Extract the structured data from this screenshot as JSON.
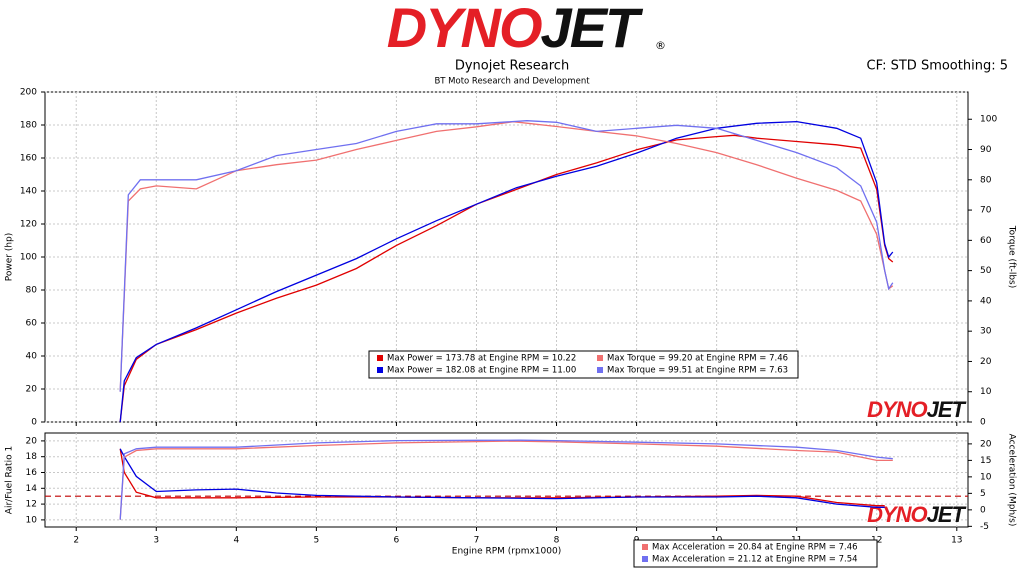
{
  "header": {
    "logo": [
      "DYNO",
      "JET",
      "®"
    ],
    "title": "Dynojet Research",
    "subtitle": "BT Moto Research and Development",
    "settings": "CF: STD Smoothing: 5"
  },
  "chart_data": [
    {
      "type": "line",
      "ylabel": "Power (hp)",
      "y2label": "Torque (ft-lbs)",
      "xlim": [
        1.61,
        13.14
      ],
      "ylim": [
        0,
        200
      ],
      "yticks": [
        0,
        20,
        40,
        60,
        80,
        100,
        120,
        140,
        160,
        180,
        200
      ],
      "y2lim": [
        0,
        109
      ],
      "y2ticks": [
        0,
        10,
        20,
        30,
        40,
        50,
        60,
        70,
        80,
        90,
        100
      ],
      "grid": true,
      "watermark": [
        "DYNO",
        "JET"
      ],
      "series": [
        {
          "name": "Max Power = 173.78 at Engine RPM = 10.22",
          "color": "#e00000",
          "axis": "y",
          "x": [
            2.55,
            2.6,
            2.75,
            3,
            3.5,
            4,
            4.5,
            5,
            5.5,
            6,
            6.5,
            7,
            7.5,
            8,
            8.5,
            9,
            9.5,
            10,
            10.22,
            10.5,
            11,
            11.5,
            11.8,
            12,
            12.1,
            12.15,
            12.2
          ],
          "values": [
            0,
            22,
            38,
            47,
            56,
            66,
            75,
            83,
            93,
            107,
            119,
            132,
            141,
            150,
            157,
            165,
            171,
            173,
            173.78,
            172,
            170,
            168,
            166,
            141,
            107,
            99,
            97
          ]
        },
        {
          "name": "Max Power = 182.08 at Engine RPM = 11.00",
          "color": "#0000e0",
          "axis": "y",
          "x": [
            2.55,
            2.6,
            2.75,
            3,
            3.5,
            4,
            4.5,
            5,
            5.5,
            6,
            6.5,
            7,
            7.5,
            8,
            8.5,
            9,
            9.5,
            10,
            10.5,
            11,
            11.5,
            11.8,
            12,
            12.1,
            12.15,
            12.2
          ],
          "values": [
            0,
            25,
            39,
            47,
            57,
            68,
            79,
            89,
            99,
            111,
            122,
            132,
            142,
            149,
            155,
            163,
            172,
            178,
            181,
            182.08,
            178,
            172,
            145,
            108,
            100,
            103
          ]
        },
        {
          "name": "Max Torque = 99.20 at Engine RPM = 7.46",
          "color": "#f07070",
          "axis": "y2",
          "x": [
            2.55,
            2.65,
            2.8,
            3,
            3.5,
            4,
            4.5,
            5,
            5.5,
            6,
            6.5,
            7,
            7.46,
            8,
            8.5,
            9,
            9.5,
            10,
            10.5,
            11,
            11.5,
            11.8,
            12,
            12.1,
            12.15,
            12.2
          ],
          "values": [
            10,
            73,
            77,
            78,
            77,
            83,
            85,
            86.5,
            90,
            93,
            96,
            97.5,
            99.2,
            97.6,
            96,
            94.5,
            92,
            89,
            85,
            80.5,
            76.5,
            73,
            62,
            50,
            44,
            45
          ]
        },
        {
          "name": "Max Torque = 99.51 at Engine RPM = 7.63",
          "color": "#7070f0",
          "axis": "y2",
          "x": [
            2.55,
            2.65,
            2.8,
            3,
            3.5,
            4,
            4.5,
            5,
            5.5,
            6,
            6.5,
            7,
            7.63,
            8,
            8.5,
            9,
            9.5,
            10,
            10.5,
            11,
            11.5,
            11.8,
            12,
            12.1,
            12.15,
            12.2
          ],
          "values": [
            10,
            75,
            80,
            80,
            80,
            83,
            88,
            90,
            92,
            96,
            98.5,
            98.5,
            99.51,
            99,
            96,
            97,
            98,
            97,
            93,
            89,
            84,
            78,
            66,
            50,
            44,
            46
          ]
        }
      ]
    },
    {
      "type": "line",
      "xlabel": "Engine RPM (rpmx1000)",
      "ylabel": "Air/Fuel Ratio 1",
      "y2label": "Acceleration (Mph/s)",
      "xlim": [
        1.61,
        13.14
      ],
      "xticks": [
        2,
        3,
        4,
        5,
        6,
        7,
        8,
        9,
        10,
        11,
        12,
        13
      ],
      "ylim": [
        9.1,
        21
      ],
      "yticks": [
        10,
        12,
        14,
        16,
        18,
        20
      ],
      "y2lim": [
        -5.2,
        23.3
      ],
      "y2ticks": [
        -5,
        0,
        5,
        10,
        15,
        20
      ],
      "grid": true,
      "ref_line": 13,
      "ref_color": "#c00000",
      "watermark": [
        "DYNO",
        "JET"
      ],
      "series": [
        {
          "color": "#e00000",
          "axis": "y",
          "x": [
            2.55,
            2.6,
            2.75,
            3,
            4,
            5,
            6,
            7,
            8,
            9,
            10,
            10.5,
            11,
            11.5,
            12,
            12.1
          ],
          "values": [
            19,
            16,
            13.5,
            12.8,
            12.8,
            12.9,
            12.9,
            12.8,
            12.8,
            12.9,
            13,
            13.1,
            13,
            12.2,
            11.8,
            11.8
          ]
        },
        {
          "color": "#0000e0",
          "axis": "y",
          "x": [
            2.55,
            2.6,
            2.75,
            3,
            3.5,
            4,
            4.5,
            5,
            6,
            7,
            8,
            9,
            10,
            10.5,
            11,
            11.5,
            12,
            12.1
          ],
          "values": [
            19,
            18,
            15.5,
            13.6,
            13.8,
            13.9,
            13.4,
            13.1,
            12.9,
            12.8,
            12.7,
            12.9,
            12.9,
            13,
            12.8,
            12,
            11.6,
            11.6
          ]
        },
        {
          "name": "Max Acceleration = 20.84 at Engine RPM = 7.46",
          "color": "#f07070",
          "axis": "y2",
          "x": [
            2.55,
            2.6,
            2.75,
            3,
            4,
            5,
            6,
            7,
            7.46,
            8,
            9,
            10,
            11,
            11.5,
            12,
            12.2
          ],
          "values": [
            -3,
            16,
            18,
            18.5,
            18.5,
            19.5,
            20.3,
            20.7,
            20.84,
            20.6,
            20,
            19.3,
            18,
            17.5,
            15,
            15
          ]
        },
        {
          "name": "Max Acceleration = 21.12 at Engine RPM = 7.54",
          "color": "#7070f0",
          "axis": "y2",
          "x": [
            2.55,
            2.6,
            2.75,
            3,
            4,
            5,
            6,
            7,
            7.54,
            8,
            9,
            10,
            11,
            11.5,
            12,
            12.2
          ],
          "values": [
            -3,
            17,
            18.5,
            19,
            19,
            20.3,
            21,
            21.1,
            21.12,
            21,
            20.5,
            20,
            19,
            18,
            16,
            15.5
          ]
        }
      ]
    }
  ]
}
